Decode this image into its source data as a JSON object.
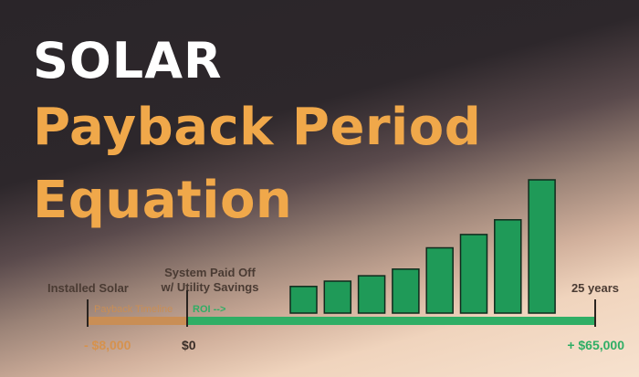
{
  "title": {
    "line1": "SOLAR",
    "line2": "Payback Period",
    "line3": "Equation"
  },
  "timeline": {
    "start_label": "Installed Solar",
    "mid_label_line1": "System Paid Off",
    "mid_label_line2": "w/ Utility Savings",
    "end_label": "25 years",
    "payback_label": "Payback Timeline",
    "roi_label": "ROI -->",
    "start_value": "- $8,000",
    "mid_value": "$0",
    "end_value": "+ $65,000"
  },
  "colors": {
    "accent_orange": "#f0a84a",
    "payback_bar": "#c98e55",
    "roi_green": "#2fae65",
    "bar_fill": "#1f9a58",
    "bar_stroke": "#0f2a1c"
  },
  "chart_data": {
    "type": "bar",
    "title": "SOLAR Payback Period Equation",
    "values": [
      2.0,
      2.4,
      2.8,
      3.3,
      4.9,
      5.9,
      7.0,
      10.0
    ],
    "ylim": [
      0,
      10
    ],
    "grid": false,
    "legend": "none"
  }
}
